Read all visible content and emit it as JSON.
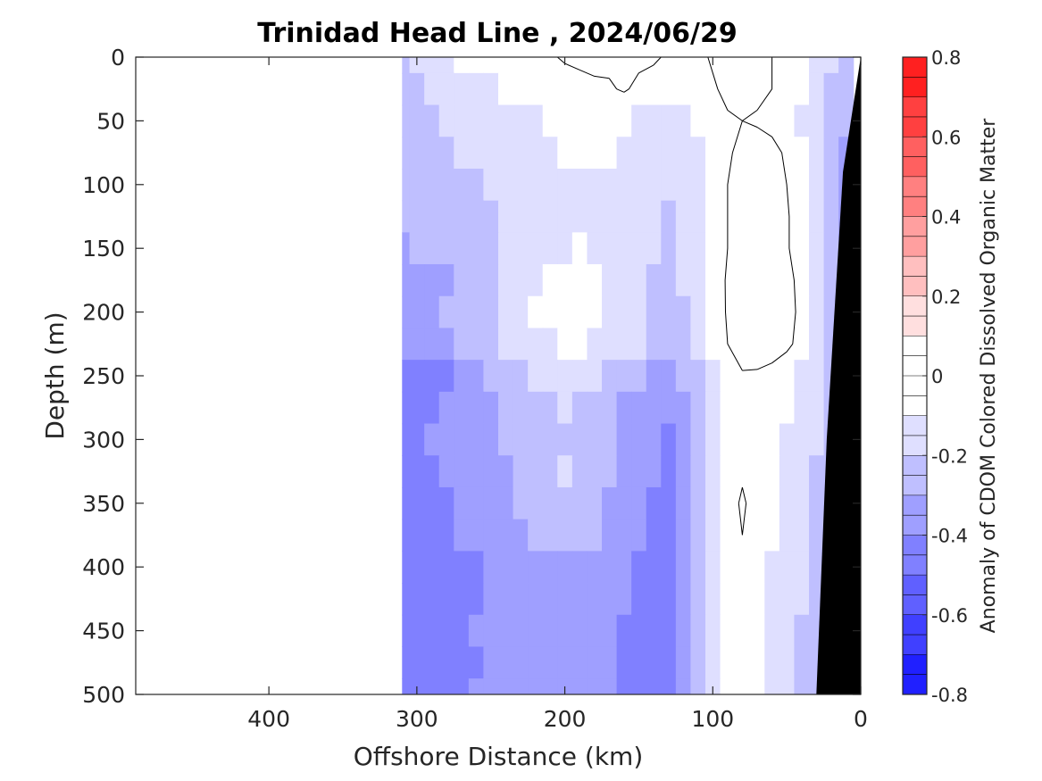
{
  "chart_data": {
    "type": "heatmap",
    "title": "Trinidad Head Line , 2024/06/29",
    "xlabel": "Offshore Distance (km)",
    "ylabel": "Depth (m)",
    "colorbar_label": "Anomaly of CDOM Colored Dissolved Organic Matter",
    "xlim": [
      490,
      0
    ],
    "ylim": [
      0,
      500
    ],
    "x_reversed": true,
    "y_reversed": true,
    "x_ticks": [
      "400",
      "300",
      "200",
      "100",
      "0"
    ],
    "y_ticks": [
      "0",
      "50",
      "100",
      "150",
      "200",
      "250",
      "300",
      "350",
      "400",
      "450",
      "500"
    ],
    "colorbar_range": [
      -0.8,
      0.8
    ],
    "colorbar_ticks": [
      "0.8",
      "0.6",
      "0.4",
      "0.2",
      "0",
      "-0.2",
      "-0.4",
      "-0.6",
      "-0.8"
    ],
    "colormap": {
      "negative": "#0000ff",
      "zero": "#ffffff",
      "positive": "#ff0000"
    },
    "contour_level": 0,
    "data_extent_km": [
      310,
      0
    ],
    "x": [
      310,
      300,
      290,
      280,
      270,
      260,
      250,
      240,
      230,
      220,
      210,
      200,
      190,
      180,
      170,
      160,
      150,
      140,
      130,
      120,
      110,
      100,
      90,
      80,
      70,
      60,
      50,
      40,
      30,
      20,
      10
    ],
    "y": [
      0,
      25,
      50,
      75,
      100,
      125,
      150,
      175,
      200,
      225,
      250,
      275,
      300,
      325,
      350,
      375,
      400,
      425,
      450,
      475,
      500
    ],
    "z": [
      [
        -0.2,
        -0.15,
        -0.12,
        -0.1,
        -0.08,
        -0.06,
        -0.05,
        -0.04,
        -0.03,
        -0.02,
        -0.01,
        0.01,
        0.02,
        0.03,
        0.02,
        0.02,
        0.02,
        0.01,
        -0.01,
        -0.02,
        -0.02,
        0.01,
        0.02,
        0.05,
        0.03,
        0.0,
        -0.03,
        -0.06,
        -0.12,
        -0.18,
        -0.22
      ],
      [
        -0.22,
        -0.2,
        -0.18,
        -0.16,
        -0.14,
        -0.12,
        -0.1,
        -0.08,
        -0.06,
        -0.06,
        -0.05,
        -0.04,
        -0.03,
        -0.02,
        -0.01,
        0.01,
        -0.02,
        -0.03,
        -0.05,
        -0.06,
        -0.06,
        -0.01,
        0.02,
        0.03,
        0.02,
        0.0,
        -0.03,
        -0.08,
        -0.15,
        -0.22,
        -0.26
      ],
      [
        -0.24,
        -0.22,
        -0.2,
        -0.18,
        -0.17,
        -0.16,
        -0.14,
        -0.12,
        -0.1,
        -0.1,
        -0.09,
        -0.08,
        -0.08,
        -0.07,
        -0.08,
        -0.09,
        -0.1,
        -0.11,
        -0.12,
        -0.1,
        -0.08,
        -0.03,
        -0.01,
        0.0,
        -0.01,
        -0.02,
        -0.05,
        -0.1,
        -0.18,
        -0.25,
        -0.28
      ],
      [
        -0.26,
        -0.24,
        -0.22,
        -0.2,
        -0.19,
        -0.18,
        -0.16,
        -0.14,
        -0.12,
        -0.12,
        -0.1,
        -0.09,
        -0.08,
        -0.08,
        -0.09,
        -0.11,
        -0.12,
        -0.14,
        -0.16,
        -0.13,
        -0.1,
        -0.04,
        -0.01,
        0.02,
        0.04,
        0.02,
        -0.01,
        -0.08,
        -0.18,
        -0.26,
        -0.3
      ],
      [
        -0.28,
        -0.26,
        -0.24,
        -0.22,
        -0.21,
        -0.2,
        -0.18,
        -0.16,
        -0.14,
        -0.13,
        -0.12,
        -0.11,
        -0.1,
        -0.1,
        -0.11,
        -0.13,
        -0.14,
        -0.16,
        -0.18,
        -0.15,
        -0.11,
        -0.05,
        0.0,
        0.03,
        0.05,
        0.03,
        0.0,
        -0.06,
        -0.16,
        -0.25,
        -0.3
      ],
      [
        -0.28,
        -0.26,
        -0.25,
        -0.24,
        -0.23,
        -0.22,
        -0.2,
        -0.18,
        -0.16,
        -0.14,
        -0.13,
        -0.12,
        -0.11,
        -0.11,
        -0.12,
        -0.14,
        -0.16,
        -0.18,
        -0.2,
        -0.16,
        -0.12,
        -0.05,
        0.0,
        0.04,
        0.06,
        0.04,
        0.01,
        -0.05,
        -0.14,
        -0.24,
        -0.3
      ],
      [
        -0.3,
        -0.28,
        -0.27,
        -0.26,
        -0.24,
        -0.22,
        -0.2,
        -0.18,
        -0.16,
        -0.14,
        -0.12,
        -0.1,
        -0.09,
        -0.1,
        -0.12,
        -0.14,
        -0.17,
        -0.19,
        -0.21,
        -0.17,
        -0.12,
        -0.05,
        0.0,
        0.03,
        0.05,
        0.04,
        0.01,
        -0.05,
        -0.14,
        -0.24,
        -0.3
      ],
      [
        -0.36,
        -0.34,
        -0.32,
        -0.3,
        -0.28,
        -0.26,
        -0.22,
        -0.18,
        -0.14,
        -0.11,
        -0.09,
        -0.07,
        -0.06,
        -0.08,
        -0.11,
        -0.14,
        -0.18,
        -0.21,
        -0.24,
        -0.19,
        -0.13,
        -0.05,
        0.01,
        0.05,
        0.08,
        0.06,
        0.03,
        -0.03,
        -0.12,
        -0.22,
        -0.28
      ],
      [
        -0.34,
        -0.32,
        -0.3,
        -0.29,
        -0.27,
        -0.24,
        -0.2,
        -0.16,
        -0.12,
        -0.09,
        -0.07,
        -0.04,
        -0.04,
        -0.06,
        -0.1,
        -0.13,
        -0.17,
        -0.21,
        -0.24,
        -0.2,
        -0.14,
        -0.06,
        0.01,
        0.06,
        0.09,
        0.07,
        0.03,
        -0.02,
        -0.1,
        -0.2,
        -0.28
      ],
      [
        -0.36,
        -0.34,
        -0.32,
        -0.3,
        -0.28,
        -0.25,
        -0.22,
        -0.18,
        -0.15,
        -0.12,
        -0.1,
        -0.08,
        -0.08,
        -0.1,
        -0.13,
        -0.16,
        -0.19,
        -0.23,
        -0.26,
        -0.22,
        -0.16,
        -0.08,
        0.0,
        0.05,
        0.08,
        0.06,
        0.02,
        -0.03,
        -0.11,
        -0.2,
        -0.28
      ],
      [
        -0.46,
        -0.44,
        -0.42,
        -0.4,
        -0.36,
        -0.32,
        -0.28,
        -0.24,
        -0.2,
        -0.17,
        -0.14,
        -0.12,
        -0.13,
        -0.16,
        -0.2,
        -0.24,
        -0.28,
        -0.32,
        -0.34,
        -0.28,
        -0.2,
        -0.1,
        -0.03,
        -0.01,
        -0.02,
        -0.04,
        -0.06,
        -0.1,
        -0.16,
        -0.24,
        -0.3
      ],
      [
        -0.44,
        -0.42,
        -0.4,
        -0.38,
        -0.36,
        -0.33,
        -0.3,
        -0.27,
        -0.24,
        -0.22,
        -0.2,
        -0.19,
        -0.2,
        -0.22,
        -0.26,
        -0.3,
        -0.33,
        -0.36,
        -0.38,
        -0.31,
        -0.22,
        -0.11,
        -0.04,
        -0.01,
        -0.03,
        -0.06,
        -0.09,
        -0.13,
        -0.18,
        -0.24,
        -0.3
      ],
      [
        -0.42,
        -0.4,
        -0.38,
        -0.37,
        -0.35,
        -0.33,
        -0.31,
        -0.29,
        -0.27,
        -0.25,
        -0.23,
        -0.22,
        -0.23,
        -0.25,
        -0.28,
        -0.31,
        -0.34,
        -0.37,
        -0.4,
        -0.33,
        -0.23,
        -0.12,
        -0.04,
        -0.02,
        -0.04,
        -0.07,
        -0.1,
        -0.14,
        -0.18,
        -0.24,
        -0.3
      ],
      [
        -0.44,
        -0.42,
        -0.4,
        -0.38,
        -0.36,
        -0.34,
        -0.32,
        -0.3,
        -0.27,
        -0.24,
        -0.2,
        -0.18,
        -0.21,
        -0.25,
        -0.29,
        -0.33,
        -0.36,
        -0.38,
        -0.4,
        -0.33,
        -0.23,
        -0.11,
        -0.03,
        -0.01,
        -0.04,
        -0.08,
        -0.12,
        -0.16,
        -0.2,
        -0.25,
        -0.3
      ],
      [
        -0.46,
        -0.44,
        -0.42,
        -0.4,
        -0.37,
        -0.35,
        -0.33,
        -0.31,
        -0.29,
        -0.27,
        -0.26,
        -0.25,
        -0.26,
        -0.28,
        -0.31,
        -0.34,
        -0.37,
        -0.4,
        -0.42,
        -0.34,
        -0.24,
        -0.12,
        -0.03,
        0.01,
        -0.03,
        -0.08,
        -0.12,
        -0.16,
        -0.2,
        -0.25,
        -0.3
      ],
      [
        -0.44,
        -0.42,
        -0.41,
        -0.4,
        -0.38,
        -0.36,
        -0.34,
        -0.32,
        -0.3,
        -0.28,
        -0.27,
        -0.26,
        -0.27,
        -0.29,
        -0.32,
        -0.35,
        -0.38,
        -0.41,
        -0.43,
        -0.35,
        -0.25,
        -0.13,
        -0.04,
        0.0,
        -0.04,
        -0.09,
        -0.13,
        -0.17,
        -0.21,
        -0.26,
        -0.3
      ],
      [
        -0.48,
        -0.46,
        -0.44,
        -0.43,
        -0.44,
        -0.42,
        -0.38,
        -0.35,
        -0.33,
        -0.31,
        -0.3,
        -0.3,
        -0.31,
        -0.33,
        -0.35,
        -0.38,
        -0.41,
        -0.44,
        -0.44,
        -0.36,
        -0.26,
        -0.14,
        -0.05,
        -0.03,
        -0.06,
        -0.1,
        -0.14,
        -0.18,
        -0.22,
        -0.26,
        -0.3
      ],
      [
        -0.48,
        -0.46,
        -0.44,
        -0.42,
        -0.41,
        -0.4,
        -0.38,
        -0.36,
        -0.34,
        -0.32,
        -0.31,
        -0.3,
        -0.31,
        -0.33,
        -0.36,
        -0.39,
        -0.42,
        -0.45,
        -0.46,
        -0.37,
        -0.27,
        -0.15,
        -0.06,
        -0.04,
        -0.07,
        -0.11,
        -0.15,
        -0.19,
        -0.22,
        -0.26,
        -0.3
      ],
      [
        -0.46,
        -0.45,
        -0.44,
        -0.42,
        -0.4,
        -0.39,
        -0.38,
        -0.36,
        -0.34,
        -0.33,
        -0.32,
        -0.31,
        -0.32,
        -0.34,
        -0.37,
        -0.4,
        -0.42,
        -0.44,
        -0.45,
        -0.36,
        -0.26,
        -0.14,
        -0.06,
        -0.05,
        -0.08,
        -0.12,
        -0.16,
        -0.2,
        -0.23,
        -0.27,
        -0.3
      ],
      [
        -0.48,
        -0.47,
        -0.46,
        -0.44,
        -0.42,
        -0.4,
        -0.39,
        -0.37,
        -0.35,
        -0.34,
        -0.33,
        -0.32,
        -0.33,
        -0.35,
        -0.38,
        -0.41,
        -0.43,
        -0.46,
        -0.47,
        -0.38,
        -0.27,
        -0.15,
        -0.07,
        -0.06,
        -0.09,
        -0.13,
        -0.17,
        -0.2,
        -0.24,
        -0.27,
        -0.3
      ],
      [
        -0.46,
        -0.45,
        -0.44,
        -0.42,
        -0.41,
        -0.39,
        -0.38,
        -0.36,
        -0.34,
        -0.33,
        -0.32,
        -0.31,
        -0.32,
        -0.34,
        -0.37,
        -0.4,
        -0.42,
        -0.44,
        -0.45,
        -0.36,
        -0.26,
        -0.15,
        -0.07,
        -0.06,
        -0.09,
        -0.13,
        -0.17,
        -0.2,
        -0.24,
        -0.27,
        -0.3
      ]
    ],
    "bathymetry": {
      "fill_color": "#000000",
      "seafloor_km": [
        {
          "depth": 0,
          "x": 0
        },
        {
          "depth": 90,
          "x": 12
        },
        {
          "depth": 300,
          "x": 23
        },
        {
          "depth": 500,
          "x": 30
        }
      ]
    }
  }
}
